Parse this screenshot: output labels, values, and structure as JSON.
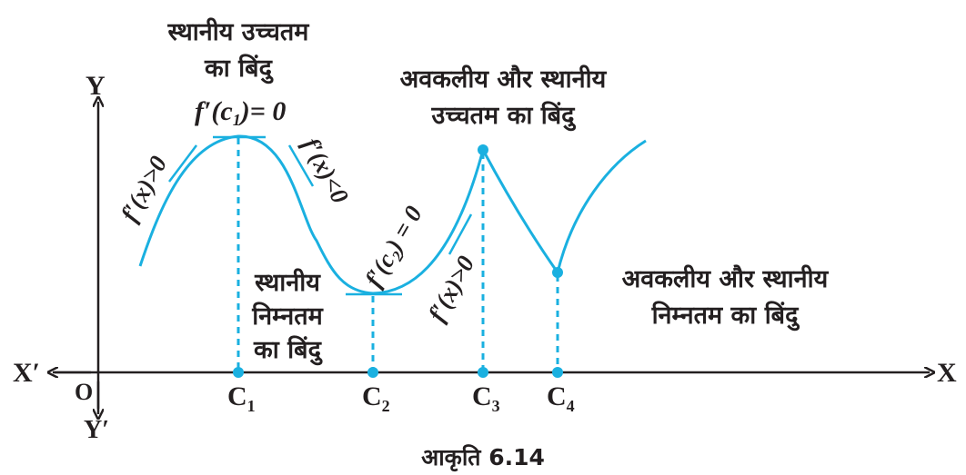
{
  "axes": {
    "x_pos": "X",
    "x_neg": "X′",
    "y_pos": "Y",
    "y_neg": "Y′",
    "origin": "O"
  },
  "points": [
    {
      "label": "C",
      "sub": "1"
    },
    {
      "label": "C",
      "sub": "2"
    },
    {
      "label": "C",
      "sub": "3"
    },
    {
      "label": "C",
      "sub": "4"
    }
  ],
  "labels": {
    "local_max_line1": "स्थानीय उच्चतम",
    "local_max_line2": "का बिंदु",
    "fc1_prefix": "f′(c",
    "fc1_sub": "1",
    "fc1_suffix": ")= 0",
    "fx_pos_left": "f′(x)>0",
    "fx_neg": "f′(x)<0",
    "fc2_prefix": "f′(c",
    "fc2_sub": "2",
    "fc2_suffix": ") = 0",
    "fx_pos_right": "f′(x)>0",
    "nondiff_max_line1": "अवकलीय और स्थानीय",
    "nondiff_max_line2": "उच्चतम का बिंदु",
    "local_min_line1": "स्थानीय",
    "local_min_line2": "निम्नतम",
    "local_min_line3": "का बिंदु",
    "nondiff_min_line1": "अवकलीय और स्थानीय",
    "nondiff_min_line2": "निम्नतम का बिंदु"
  },
  "colors": {
    "curve": "#1ab0e0",
    "text": "#231f20"
  },
  "caption": "आकृति 6.14"
}
